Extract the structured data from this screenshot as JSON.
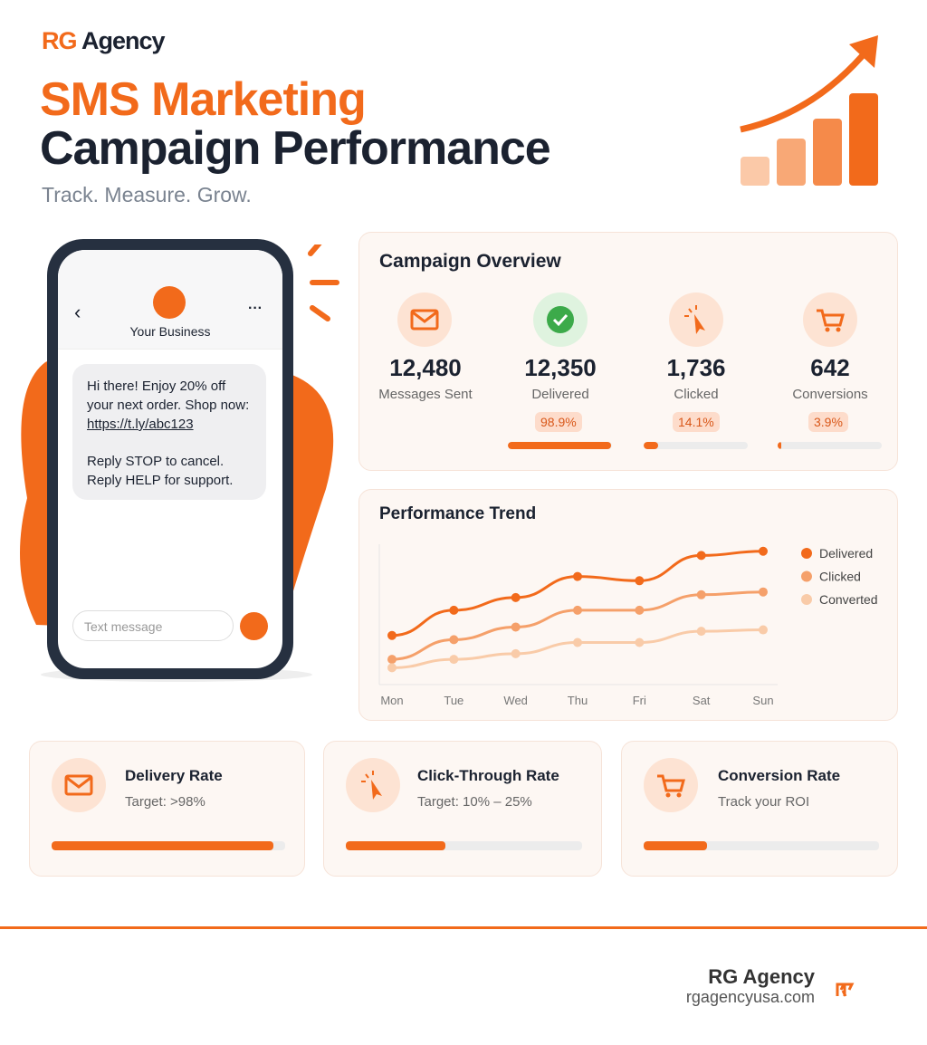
{
  "header": {
    "brand_prefix": "RG",
    "brand_name": "Agency",
    "title_line1": "SMS Marketing",
    "title_line2": "Campaign Performance",
    "tagline": "Track. Measure. Grow."
  },
  "phone": {
    "contact": "Your Business",
    "message_lines": [
      "Hi there! Enjoy 20% off",
      "your next order. Shop now:"
    ],
    "link": "https://t.ly/abc123",
    "footer_lines": [
      "Reply STOP to cancel.",
      "Reply HELP for support."
    ],
    "input_placeholder": "Text message"
  },
  "overview": {
    "title": "Campaign Overview",
    "metrics": [
      {
        "value": "12,480",
        "label": "Messages Sent"
      },
      {
        "value": "12,350",
        "label": "Delivered",
        "rate": 98.9,
        "rate_label": "98.9%"
      },
      {
        "value": "1,736",
        "label": "Clicked",
        "rate": 14.1,
        "rate_label": "14.1%"
      },
      {
        "value": "642",
        "label": "Conversions",
        "rate": 3.9,
        "rate_label": "3.9%"
      }
    ]
  },
  "chart_data": {
    "type": "line",
    "title": "Performance Trend",
    "categories": [
      "Mon",
      "Tue",
      "Wed",
      "Thu",
      "Fri",
      "Sat",
      "Sun"
    ],
    "ylim": [
      0,
      100
    ],
    "series": [
      {
        "name": "Delivered",
        "color": "#f26a1b",
        "values": [
          35,
          53,
          62,
          77,
          74,
          92,
          95
        ]
      },
      {
        "name": "Clicked",
        "color": "#f5a06a",
        "values": [
          18,
          32,
          41,
          53,
          53,
          64,
          66
        ]
      },
      {
        "name": "Converted",
        "color": "#f9cba8",
        "values": [
          12,
          18,
          22,
          30,
          30,
          38,
          39
        ]
      }
    ]
  },
  "cards": [
    {
      "title": "Delivery Rate",
      "subtitle": "Target: >98%",
      "progress": 95
    },
    {
      "title": "Click-Through Rate",
      "subtitle": "Target: 10% – 25%",
      "progress": 42
    },
    {
      "title": "Conversion Rate",
      "subtitle": "Track your ROI",
      "progress": 27
    }
  ],
  "footer": {
    "name": "RG Agency",
    "url": "rgagencyusa.com"
  }
}
